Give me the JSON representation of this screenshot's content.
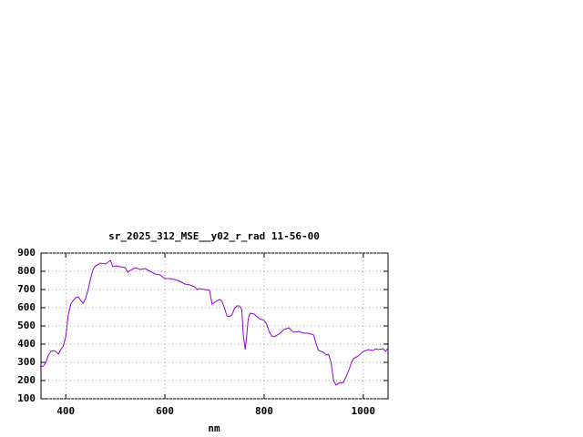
{
  "chart_data": {
    "type": "line",
    "title": "sr_2025_312_MSE__y02_r_rad 11-56-00",
    "x_label": "nm",
    "xlim": [
      350,
      1050
    ],
    "xticks": [
      400,
      600,
      800,
      1000
    ],
    "ylim": [
      100,
      900
    ],
    "yticks": [
      100,
      200,
      300,
      400,
      500,
      600,
      700,
      800,
      900
    ],
    "grid": true,
    "x": [
      350,
      355,
      360,
      365,
      370,
      375,
      380,
      385,
      390,
      395,
      400,
      405,
      410,
      415,
      420,
      425,
      430,
      435,
      440,
      445,
      450,
      455,
      460,
      470,
      480,
      490,
      495,
      500,
      510,
      520,
      525,
      530,
      540,
      550,
      560,
      570,
      580,
      590,
      600,
      610,
      620,
      630,
      640,
      650,
      660,
      665,
      670,
      680,
      690,
      695,
      700,
      710,
      715,
      720,
      725,
      730,
      735,
      740,
      745,
      750,
      755,
      758,
      762,
      765,
      768,
      772,
      780,
      790,
      800,
      805,
      810,
      815,
      820,
      830,
      840,
      850,
      855,
      860,
      870,
      880,
      890,
      900,
      905,
      910,
      920,
      925,
      930,
      935,
      940,
      945,
      950,
      960,
      965,
      970,
      975,
      980,
      990,
      1000,
      1010,
      1020,
      1025,
      1030,
      1040,
      1045,
      1050
    ],
    "series": [
      {
        "color": "#9400d3",
        "values": [
          275,
          280,
          300,
          340,
          360,
          365,
          360,
          345,
          370,
          390,
          440,
          560,
          620,
          640,
          655,
          660,
          640,
          625,
          650,
          700,
          760,
          810,
          830,
          845,
          840,
          860,
          825,
          830,
          825,
          820,
          795,
          805,
          820,
          810,
          815,
          800,
          785,
          780,
          760,
          760,
          755,
          745,
          730,
          725,
          715,
          700,
          705,
          700,
          695,
          620,
          630,
          645,
          635,
          600,
          555,
          550,
          560,
          595,
          610,
          610,
          590,
          450,
          370,
          450,
          540,
          570,
          565,
          540,
          530,
          510,
          470,
          445,
          440,
          455,
          480,
          490,
          475,
          465,
          470,
          460,
          460,
          450,
          400,
          365,
          355,
          340,
          345,
          300,
          200,
          175,
          185,
          190,
          220,
          250,
          290,
          320,
          335,
          360,
          370,
          365,
          375,
          370,
          375,
          360,
          380
        ]
      }
    ]
  }
}
